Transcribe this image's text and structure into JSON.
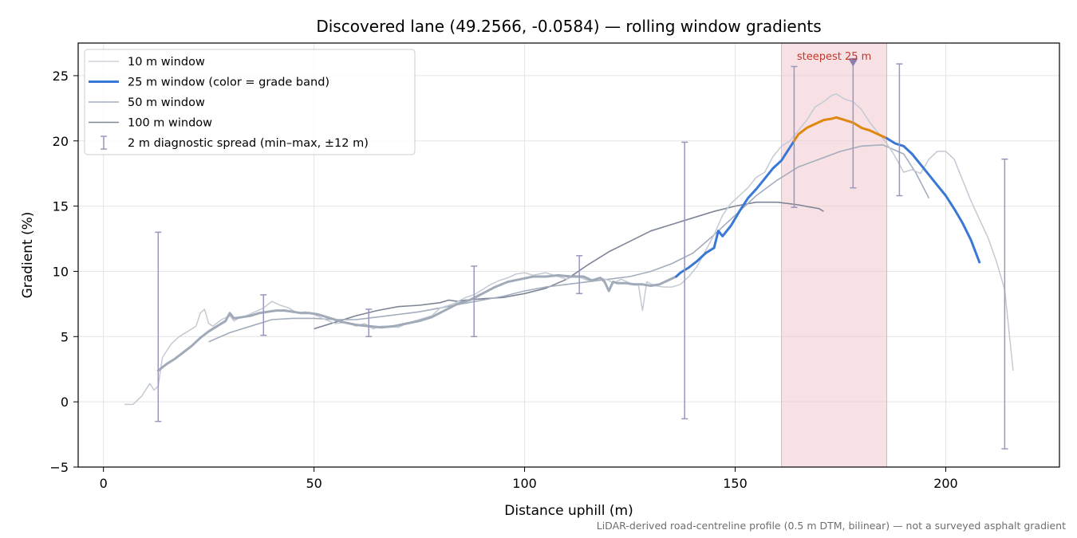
{
  "chart_data": {
    "type": "line",
    "title": "Discovered lane (49.2566, -0.0584) — rolling window gradients",
    "xlabel": "Distance uphill (m)",
    "ylabel": "Gradient (%)",
    "xlim": [
      -6,
      227
    ],
    "ylim": [
      -5,
      27.5
    ],
    "xticks": [
      0,
      50,
      100,
      150,
      200
    ],
    "yticks": [
      -5,
      0,
      5,
      10,
      15,
      20,
      25
    ],
    "grid": true,
    "legend_position": "upper-left",
    "footnote": "LiDAR-derived road-centreline profile (0.5 m DTM, bilinear) — not a surveyed asphalt gradient",
    "steepest_band": {
      "x_start": 161,
      "x_end": 186,
      "label": "steepest 25 m",
      "marker_x": 178,
      "marker_y": 26
    },
    "colors": {
      "w10": "#c4cad4",
      "w25_default": "#3a78d6",
      "w25_low": "#a0aab8",
      "w25_steep": "#e0870f",
      "w50": "#a3adbd",
      "w100": "#7d8596",
      "errorbar": "#9a96bd",
      "band": "#f1c9cf",
      "annot": "#c0392b"
    },
    "series": [
      {
        "name": "10 m window",
        "x": [
          5,
          7,
          9,
          11,
          12,
          13,
          14,
          16,
          18,
          20,
          22,
          23,
          24,
          25,
          26,
          28,
          30,
          31,
          32,
          34,
          36,
          38,
          40,
          42,
          44,
          46,
          48,
          50,
          52,
          55,
          58,
          60,
          62,
          64,
          66,
          68,
          70,
          72,
          75,
          78,
          80,
          83,
          86,
          88,
          90,
          92,
          94,
          96,
          98,
          100,
          102,
          105,
          108,
          110,
          112,
          115,
          118,
          120,
          121,
          123,
          125,
          127,
          128,
          129,
          131,
          133,
          135,
          137,
          139,
          141,
          143,
          145,
          147,
          149,
          151,
          153,
          155,
          157,
          159,
          161,
          163,
          165,
          167,
          169,
          171,
          173,
          174,
          176,
          178,
          180,
          182,
          184,
          186,
          188,
          190,
          192,
          194,
          196,
          198,
          200,
          202,
          204,
          206,
          208,
          210,
          212,
          214,
          216
        ],
        "y": [
          -0.2,
          -0.2,
          0.4,
          1.4,
          0.9,
          1.2,
          3.4,
          4.4,
          5.0,
          5.4,
          5.8,
          6.8,
          7.1,
          6.0,
          5.8,
          6.3,
          6.6,
          6.2,
          6.4,
          6.6,
          6.9,
          7.2,
          7.7,
          7.4,
          7.2,
          6.8,
          6.9,
          6.7,
          6.4,
          6.0,
          6.1,
          5.8,
          6.0,
          5.6,
          5.8,
          5.8,
          5.7,
          6.0,
          6.3,
          6.6,
          7.2,
          7.5,
          8.0,
          8.2,
          8.6,
          9.0,
          9.3,
          9.5,
          9.8,
          9.9,
          9.7,
          9.9,
          9.6,
          9.4,
          9.7,
          9.3,
          9.5,
          9.3,
          9.1,
          9.4,
          9.1,
          9.0,
          7.0,
          9.2,
          8.9,
          8.8,
          8.8,
          9.0,
          9.6,
          10.4,
          11.6,
          12.8,
          14.3,
          15.2,
          15.8,
          16.4,
          17.2,
          17.6,
          18.8,
          19.6,
          20.0,
          20.8,
          21.6,
          22.6,
          23.0,
          23.5,
          23.6,
          23.2,
          23.0,
          22.4,
          21.4,
          20.6,
          19.8,
          18.8,
          17.6,
          17.8,
          17.5,
          18.6,
          19.2,
          19.2,
          18.6,
          17.0,
          15.4,
          14.0,
          12.6,
          10.8,
          8.6,
          2.4
        ]
      },
      {
        "name": "25 m window (color = grade band)",
        "x": [
          13,
          15,
          17,
          19,
          21,
          23,
          25,
          27,
          29,
          30,
          31,
          33,
          35,
          37,
          39,
          41,
          43,
          45,
          47,
          49,
          51,
          54,
          57,
          60,
          63,
          66,
          69,
          72,
          75,
          78,
          81,
          84,
          87,
          90,
          93,
          96,
          99,
          102,
          105,
          108,
          111,
          114,
          116,
          118,
          119,
          120,
          121,
          122,
          124,
          126,
          128,
          130,
          132,
          134,
          136,
          137,
          139,
          141,
          143,
          145,
          146,
          147,
          149,
          151,
          153,
          155,
          157,
          159,
          161,
          162,
          163,
          164,
          165,
          167,
          169,
          171,
          173,
          174,
          176,
          178,
          180,
          182,
          184,
          186,
          188,
          190,
          192,
          194,
          196,
          198,
          200,
          202,
          204,
          206,
          208
        ],
        "y": [
          2.4,
          2.9,
          3.3,
          3.8,
          4.3,
          4.9,
          5.4,
          5.8,
          6.2,
          6.8,
          6.4,
          6.5,
          6.6,
          6.8,
          6.9,
          7.0,
          7.0,
          6.9,
          6.8,
          6.8,
          6.7,
          6.4,
          6.1,
          5.9,
          5.8,
          5.7,
          5.8,
          6.0,
          6.2,
          6.5,
          7.0,
          7.5,
          7.8,
          8.3,
          8.8,
          9.2,
          9.4,
          9.6,
          9.6,
          9.7,
          9.6,
          9.6,
          9.3,
          9.5,
          9.2,
          8.5,
          9.2,
          9.1,
          9.1,
          9.0,
          9.0,
          8.9,
          9.0,
          9.3,
          9.6,
          9.9,
          10.3,
          10.8,
          11.4,
          11.8,
          13.1,
          12.7,
          13.5,
          14.6,
          15.6,
          16.3,
          17.1,
          17.9,
          18.5,
          19.0,
          19.5,
          20.0,
          20.5,
          21.0,
          21.3,
          21.6,
          21.7,
          21.8,
          21.6,
          21.4,
          21.0,
          20.8,
          20.5,
          20.2,
          19.8,
          19.6,
          19.0,
          18.2,
          17.4,
          16.6,
          15.8,
          14.8,
          13.7,
          12.4,
          10.7
        ],
        "color_segments": [
          {
            "x_from": 13,
            "x_to": 136,
            "band": "w25_low"
          },
          {
            "x_from": 136,
            "x_to": 164,
            "band": "w25_default"
          },
          {
            "x_from": 164,
            "x_to": 186,
            "band": "w25_steep"
          },
          {
            "x_from": 186,
            "x_to": 208,
            "band": "w25_default"
          }
        ]
      },
      {
        "name": "50 m window",
        "x": [
          25,
          30,
          35,
          40,
          45,
          50,
          55,
          60,
          65,
          70,
          75,
          80,
          85,
          90,
          95,
          100,
          105,
          110,
          115,
          120,
          125,
          130,
          135,
          140,
          145,
          150,
          155,
          160,
          165,
          170,
          175,
          180,
          185,
          190,
          193,
          196
        ],
        "y": [
          4.6,
          5.3,
          5.8,
          6.3,
          6.4,
          6.4,
          6.3,
          6.3,
          6.5,
          6.7,
          6.9,
          7.2,
          7.5,
          7.8,
          8.1,
          8.5,
          8.8,
          9.0,
          9.2,
          9.4,
          9.6,
          10.0,
          10.6,
          11.4,
          12.8,
          14.3,
          15.8,
          17.0,
          18.0,
          18.6,
          19.2,
          19.6,
          19.7,
          19.0,
          17.5,
          15.6
        ]
      },
      {
        "name": "100 m window",
        "x": [
          50,
          55,
          60,
          65,
          70,
          75,
          80,
          82,
          84,
          86,
          90,
          95,
          100,
          105,
          110,
          115,
          120,
          125,
          130,
          135,
          140,
          145,
          150,
          155,
          160,
          165,
          170,
          171
        ],
        "y": [
          5.6,
          6.1,
          6.6,
          7.0,
          7.3,
          7.4,
          7.6,
          7.8,
          7.7,
          7.8,
          7.9,
          8.0,
          8.3,
          8.7,
          9.4,
          10.5,
          11.5,
          12.3,
          13.1,
          13.6,
          14.1,
          14.6,
          15.0,
          15.3,
          15.3,
          15.1,
          14.8,
          14.6
        ]
      },
      {
        "name": "2 m diagnostic spread (min–max, ±12 m)",
        "x": [
          13,
          38,
          63,
          88,
          113,
          138,
          164,
          178,
          189,
          214
        ],
        "low": [
          -1.5,
          5.1,
          5.0,
          5.0,
          8.3,
          -1.3,
          14.9,
          16.4,
          15.8,
          -3.6
        ],
        "high": [
          13.0,
          8.2,
          7.1,
          10.4,
          11.2,
          19.9,
          25.7,
          26.3,
          25.9,
          18.6
        ]
      }
    ],
    "legend": [
      {
        "label": "10 m window",
        "kind": "line",
        "color_key": "w10",
        "width": 1.3
      },
      {
        "label": "25 m window (color = grade band)",
        "kind": "line",
        "color_key": "w25_default",
        "width": 3
      },
      {
        "label": "50 m window",
        "kind": "line",
        "color_key": "w50",
        "width": 1.5
      },
      {
        "label": "100 m window",
        "kind": "line",
        "color_key": "w100",
        "width": 1.5
      },
      {
        "label": "2 m diagnostic spread (min–max, ±12 m)",
        "kind": "errorbar",
        "color_key": "errorbar",
        "width": 1.2
      }
    ]
  }
}
